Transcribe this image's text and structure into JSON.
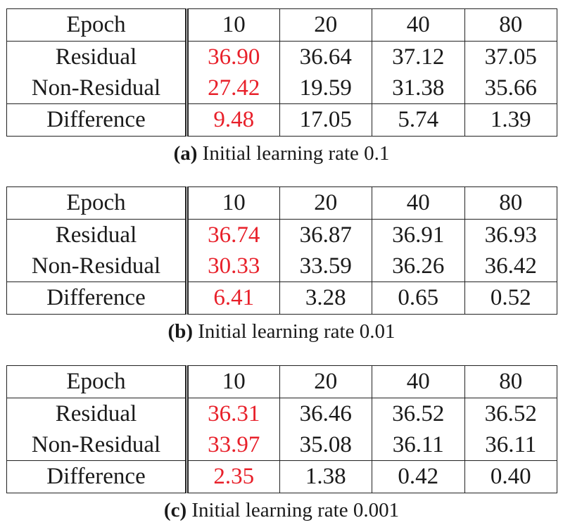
{
  "tables": [
    {
      "tag_open": "(",
      "tag_letter": "a",
      "tag_close": ")",
      "caption_text": " Initial learning rate 0.1",
      "header": {
        "label": "Epoch",
        "cols": [
          "10",
          "20",
          "40",
          "80"
        ]
      },
      "rows": [
        {
          "label": "Residual",
          "values": [
            "36.90",
            "36.64",
            "37.12",
            "37.05"
          ]
        },
        {
          "label": "Non-Residual",
          "values": [
            "27.42",
            "19.59",
            "31.38",
            "35.66"
          ]
        },
        {
          "label": "Difference",
          "values": [
            "9.48",
            "17.05",
            "5.74",
            "1.39"
          ]
        }
      ]
    },
    {
      "tag_open": "(",
      "tag_letter": "b",
      "tag_close": ")",
      "caption_text": " Initial learning rate 0.01",
      "header": {
        "label": "Epoch",
        "cols": [
          "10",
          "20",
          "40",
          "80"
        ]
      },
      "rows": [
        {
          "label": "Residual",
          "values": [
            "36.74",
            "36.87",
            "36.91",
            "36.93"
          ]
        },
        {
          "label": "Non-Residual",
          "values": [
            "30.33",
            "33.59",
            "36.26",
            "36.42"
          ]
        },
        {
          "label": "Difference",
          "values": [
            "6.41",
            "3.28",
            "0.65",
            "0.52"
          ]
        }
      ]
    },
    {
      "tag_open": "(",
      "tag_letter": "c",
      "tag_close": ")",
      "caption_text": " Initial learning rate 0.001",
      "header": {
        "label": "Epoch",
        "cols": [
          "10",
          "20",
          "40",
          "80"
        ]
      },
      "rows": [
        {
          "label": "Residual",
          "values": [
            "36.31",
            "36.46",
            "36.52",
            "36.52"
          ]
        },
        {
          "label": "Non-Residual",
          "values": [
            "33.97",
            "35.08",
            "36.11",
            "36.11"
          ]
        },
        {
          "label": "Difference",
          "values": [
            "2.35",
            "1.38",
            "0.42",
            "0.40"
          ]
        }
      ]
    }
  ],
  "colors": {
    "highlight": "#e8202a",
    "text": "#1a1a1a",
    "rule": "#222222"
  }
}
